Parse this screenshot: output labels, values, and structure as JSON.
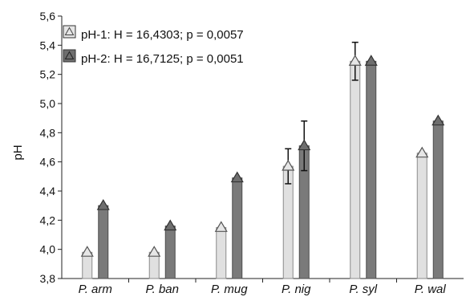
{
  "chart_data": {
    "type": "bar",
    "title": "",
    "xlabel": "",
    "ylabel": "pH",
    "ylim": [
      3.8,
      5.6
    ],
    "yticks": [
      "3,8",
      "4,0",
      "4,2",
      "4,4",
      "4,6",
      "4,8",
      "5,0",
      "5,2",
      "5,4",
      "5,6"
    ],
    "categories": [
      "P. arm",
      "P. ban",
      "P. mug",
      "P. nig",
      "P. syl",
      "P. wal"
    ],
    "series": [
      {
        "name": "pH-1: H = 16,4303; p = 0,0057",
        "color": "#e0e0e0",
        "marker": "triangle-light",
        "values": [
          3.98,
          3.98,
          4.15,
          4.57,
          5.29,
          4.66
        ],
        "errors": [
          null,
          null,
          null,
          0.12,
          0.13,
          null
        ]
      },
      {
        "name": "pH-2: H = 16,7125; p = 0,0051",
        "color": "#7a7a7a",
        "marker": "triangle-dark",
        "values": [
          4.3,
          4.16,
          4.49,
          4.71,
          5.29,
          4.88
        ],
        "errors": [
          null,
          null,
          null,
          0.17,
          null,
          null
        ]
      }
    ],
    "legend_position": "top-left",
    "grid": false
  }
}
